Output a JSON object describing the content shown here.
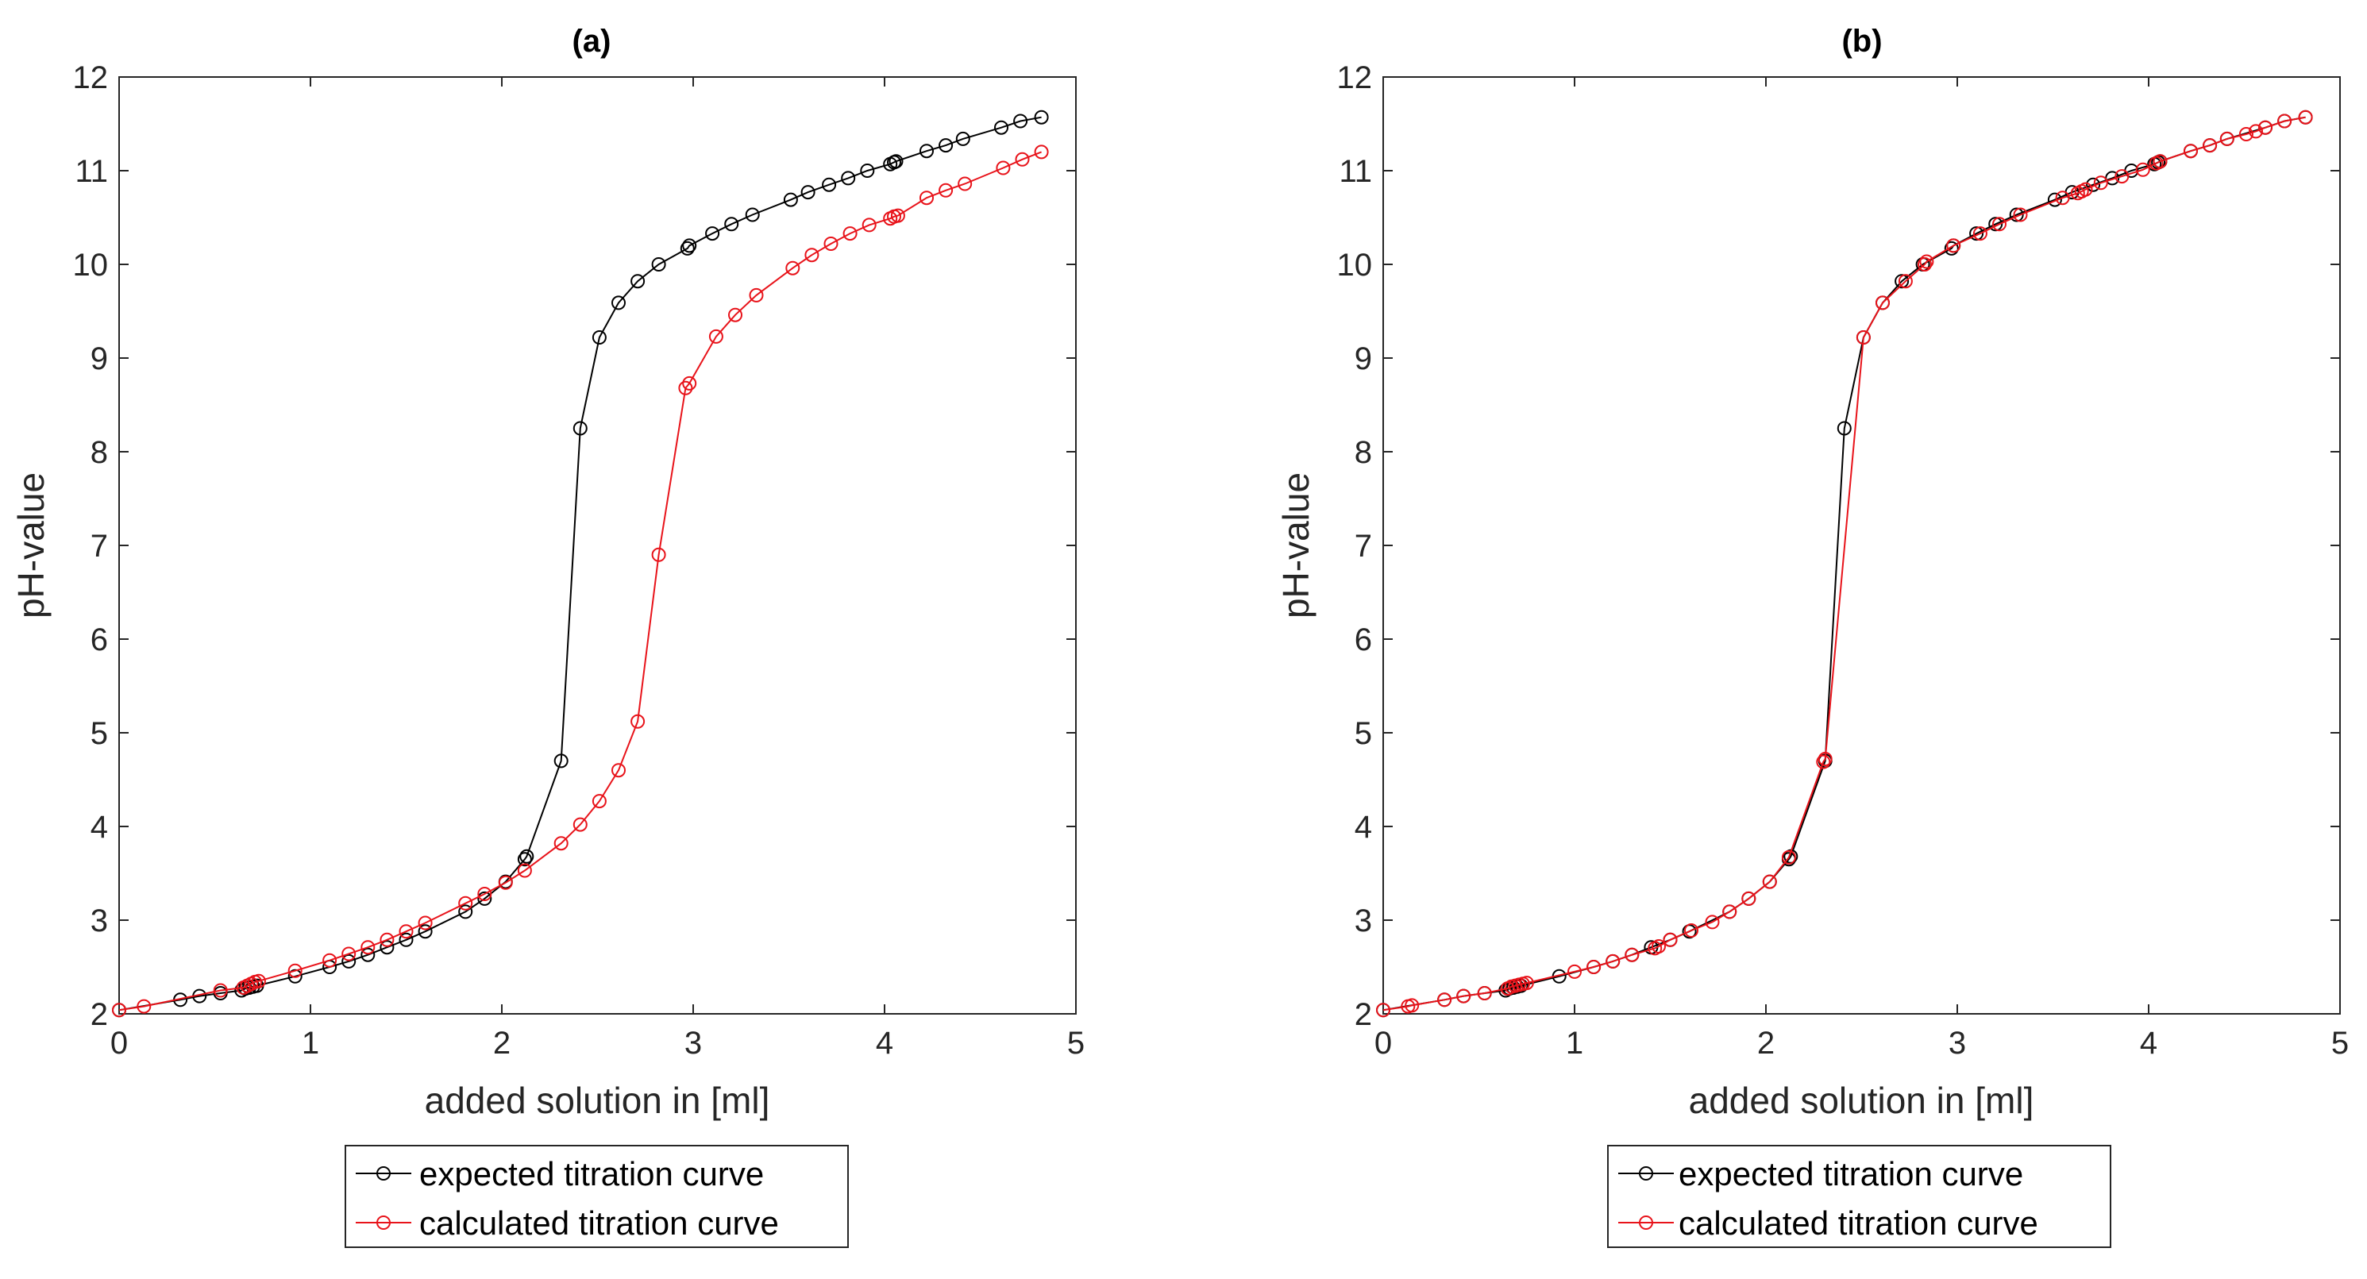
{
  "chart_data": [
    {
      "type": "line",
      "title": "(a)",
      "xlabel": "added solution in [ml]",
      "ylabel": "pH-value",
      "xlim": [
        0,
        5
      ],
      "ylim": [
        2,
        12
      ],
      "xticks": [
        "0",
        "1",
        "2",
        "3",
        "4",
        "5"
      ],
      "yticks": [
        "2",
        "3",
        "4",
        "5",
        "6",
        "7",
        "8",
        "9",
        "10",
        "11",
        "12"
      ],
      "grid": false,
      "legend_position": "below",
      "series": [
        {
          "name": "expected titration curve",
          "color": "#000000",
          "x": [
            0.0,
            0.32,
            0.42,
            0.53,
            0.64,
            0.66,
            0.68,
            0.7,
            0.72,
            0.92,
            1.1,
            1.2,
            1.3,
            1.4,
            1.5,
            1.6,
            1.81,
            1.91,
            2.02,
            2.12,
            2.13,
            2.31,
            2.41,
            2.51,
            2.61,
            2.71,
            2.82,
            2.97,
            2.98,
            3.1,
            3.2,
            3.31,
            3.51,
            3.6,
            3.71,
            3.81,
            3.91,
            4.03,
            4.05,
            4.06,
            4.22,
            4.32,
            4.41,
            4.61,
            4.71,
            4.82
          ],
          "y": [
            2.04,
            2.15,
            2.19,
            2.22,
            2.25,
            2.27,
            2.28,
            2.29,
            2.3,
            2.4,
            2.5,
            2.56,
            2.63,
            2.71,
            2.79,
            2.88,
            3.09,
            3.23,
            3.41,
            3.65,
            3.68,
            4.7,
            8.25,
            9.22,
            9.59,
            9.82,
            10.0,
            10.17,
            10.2,
            10.33,
            10.43,
            10.53,
            10.69,
            10.77,
            10.85,
            10.92,
            11.0,
            11.07,
            11.09,
            11.1,
            11.21,
            11.27,
            11.34,
            11.46,
            11.53,
            11.57
          ]
        },
        {
          "name": "calculated titration curve",
          "color": "#E8131A",
          "x": [
            0.0,
            0.13,
            0.53,
            0.65,
            0.67,
            0.69,
            0.71,
            0.73,
            0.92,
            1.1,
            1.2,
            1.3,
            1.4,
            1.5,
            1.6,
            1.81,
            1.91,
            2.02,
            2.12,
            2.31,
            2.41,
            2.51,
            2.61,
            2.71,
            2.82,
            2.96,
            2.98,
            3.12,
            3.22,
            3.33,
            3.52,
            3.62,
            3.72,
            3.82,
            3.92,
            4.03,
            4.05,
            4.07,
            4.22,
            4.32,
            4.42,
            4.62,
            4.72,
            4.82
          ],
          "y": [
            2.04,
            2.08,
            2.25,
            2.28,
            2.3,
            2.32,
            2.34,
            2.35,
            2.46,
            2.57,
            2.64,
            2.71,
            2.79,
            2.88,
            2.97,
            3.18,
            3.28,
            3.4,
            3.53,
            3.82,
            4.02,
            4.27,
            4.6,
            5.12,
            6.9,
            8.68,
            8.73,
            9.23,
            9.46,
            9.67,
            9.96,
            10.1,
            10.22,
            10.33,
            10.42,
            10.49,
            10.51,
            10.52,
            10.71,
            10.79,
            10.86,
            11.03,
            11.12,
            11.2
          ]
        }
      ]
    },
    {
      "type": "line",
      "title": "(b)",
      "xlabel": "added solution in [ml]",
      "ylabel": "pH-value",
      "xlim": [
        0,
        5
      ],
      "ylim": [
        2,
        12
      ],
      "xticks": [
        "0",
        "1",
        "2",
        "3",
        "4",
        "5"
      ],
      "yticks": [
        "2",
        "3",
        "4",
        "5",
        "6",
        "7",
        "8",
        "9",
        "10",
        "11",
        "12"
      ],
      "grid": false,
      "legend_position": "below",
      "series": [
        {
          "name": "expected titration curve",
          "color": "#000000",
          "x": [
            0.0,
            0.32,
            0.42,
            0.53,
            0.64,
            0.66,
            0.68,
            0.7,
            0.72,
            0.92,
            1.1,
            1.2,
            1.3,
            1.4,
            1.5,
            1.6,
            1.81,
            1.91,
            2.02,
            2.12,
            2.13,
            2.31,
            2.41,
            2.51,
            2.61,
            2.71,
            2.82,
            2.97,
            2.98,
            3.1,
            3.2,
            3.31,
            3.51,
            3.6,
            3.71,
            3.81,
            3.91,
            4.03,
            4.05,
            4.06,
            4.22,
            4.32,
            4.41,
            4.61,
            4.71,
            4.82
          ],
          "y": [
            2.04,
            2.15,
            2.19,
            2.22,
            2.25,
            2.27,
            2.28,
            2.29,
            2.3,
            2.4,
            2.5,
            2.56,
            2.63,
            2.71,
            2.79,
            2.88,
            3.09,
            3.23,
            3.41,
            3.65,
            3.68,
            4.7,
            8.25,
            9.22,
            9.59,
            9.82,
            10.0,
            10.17,
            10.2,
            10.33,
            10.43,
            10.53,
            10.69,
            10.77,
            10.85,
            10.92,
            11.0,
            11.07,
            11.09,
            11.1,
            11.21,
            11.27,
            11.34,
            11.46,
            11.53,
            11.57
          ]
        },
        {
          "name": "calculated titration curve",
          "color": "#E8131A",
          "x": [
            0.0,
            0.13,
            0.15,
            0.32,
            0.42,
            0.53,
            0.65,
            0.67,
            0.69,
            0.71,
            0.73,
            0.75,
            1.0,
            1.1,
            1.2,
            1.3,
            1.42,
            1.44,
            1.5,
            1.61,
            1.72,
            1.81,
            1.91,
            2.02,
            2.12,
            2.3,
            2.31,
            2.51,
            2.61,
            2.73,
            2.83,
            2.84,
            2.98,
            3.12,
            3.22,
            3.33,
            3.55,
            3.63,
            3.65,
            3.67,
            3.75,
            3.86,
            3.97,
            4.04,
            4.06,
            4.22,
            4.32,
            4.41,
            4.51,
            4.56,
            4.61,
            4.71,
            4.82
          ],
          "y": [
            2.04,
            2.08,
            2.09,
            2.15,
            2.19,
            2.22,
            2.27,
            2.29,
            2.3,
            2.31,
            2.32,
            2.33,
            2.45,
            2.5,
            2.56,
            2.63,
            2.7,
            2.72,
            2.79,
            2.89,
            2.98,
            3.09,
            3.23,
            3.41,
            3.67,
            4.69,
            4.72,
            9.22,
            9.59,
            9.82,
            10.0,
            10.03,
            10.2,
            10.33,
            10.43,
            10.53,
            10.71,
            10.76,
            10.78,
            10.8,
            10.87,
            10.94,
            11.01,
            11.08,
            11.1,
            11.21,
            11.27,
            11.34,
            11.39,
            11.42,
            11.46,
            11.53,
            11.57
          ]
        }
      ]
    }
  ]
}
